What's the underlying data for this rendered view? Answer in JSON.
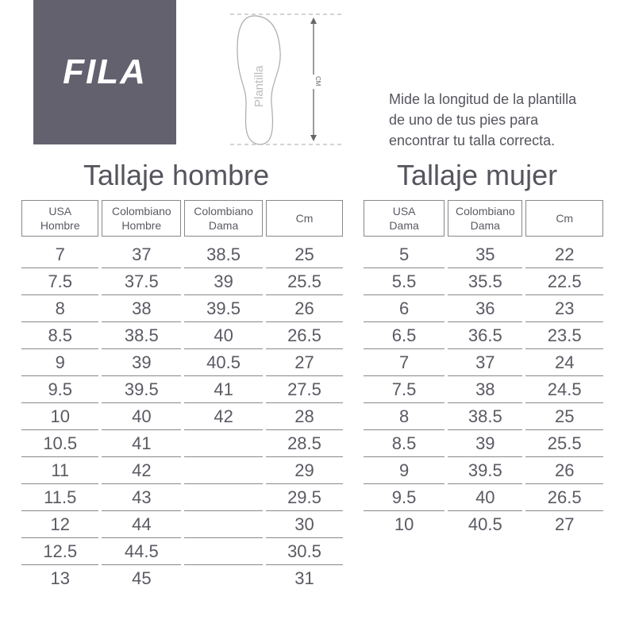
{
  "logo": "FILA",
  "diagram": {
    "insole_label": "Plantilla",
    "measure_label": "CM"
  },
  "instructions": [
    "Mide la longitud de la plantilla",
    "de uno de tus pies para",
    "encontrar tu talla correcta."
  ],
  "men": {
    "title": "Tallaje hombre",
    "headers": [
      [
        "USA",
        "Hombre"
      ],
      [
        "Colombiano",
        "Hombre"
      ],
      [
        "Colombiano",
        "Dama"
      ],
      [
        "Cm",
        ""
      ]
    ],
    "rows": [
      [
        "7",
        "37",
        "38.5",
        "25"
      ],
      [
        "7.5",
        "37.5",
        "39",
        "25.5"
      ],
      [
        "8",
        "38",
        "39.5",
        "26"
      ],
      [
        "8.5",
        "38.5",
        "40",
        "26.5"
      ],
      [
        "9",
        "39",
        "40.5",
        "27"
      ],
      [
        "9.5",
        "39.5",
        "41",
        "27.5"
      ],
      [
        "10",
        "40",
        "42",
        "28"
      ],
      [
        "10.5",
        "41",
        "",
        "28.5"
      ],
      [
        "11",
        "42",
        "",
        "29"
      ],
      [
        "11.5",
        "43",
        "",
        "29.5"
      ],
      [
        "12",
        "44",
        "",
        "30"
      ],
      [
        "12.5",
        "44.5",
        "",
        "30.5"
      ],
      [
        "13",
        "45",
        "",
        "31"
      ]
    ]
  },
  "women": {
    "title": "Tallaje mujer",
    "headers": [
      [
        "USA",
        "Dama"
      ],
      [
        "Colombiano",
        "Dama"
      ],
      [
        "Cm",
        ""
      ]
    ],
    "rows": [
      [
        "5",
        "35",
        "22"
      ],
      [
        "5.5",
        "35.5",
        "22.5"
      ],
      [
        "6",
        "36",
        "23"
      ],
      [
        "6.5",
        "36.5",
        "23.5"
      ],
      [
        "7",
        "37",
        "24"
      ],
      [
        "7.5",
        "38",
        "24.5"
      ],
      [
        "8",
        "38.5",
        "25"
      ],
      [
        "8.5",
        "39",
        "25.5"
      ],
      [
        "9",
        "39.5",
        "26"
      ],
      [
        "9.5",
        "40",
        "26.5"
      ],
      [
        "10",
        "40.5",
        "27"
      ]
    ]
  }
}
